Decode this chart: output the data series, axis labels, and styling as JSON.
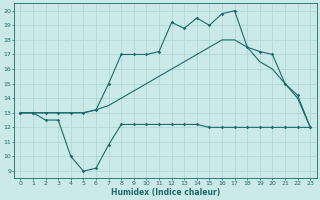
{
  "xlabel": "Humidex (Indice chaleur)",
  "xlim": [
    -0.5,
    23.5
  ],
  "ylim": [
    8.5,
    20.5
  ],
  "xticks": [
    0,
    1,
    2,
    3,
    4,
    5,
    6,
    7,
    8,
    9,
    10,
    11,
    12,
    13,
    14,
    15,
    16,
    17,
    18,
    19,
    20,
    21,
    22,
    23
  ],
  "yticks": [
    9,
    10,
    11,
    12,
    13,
    14,
    15,
    16,
    17,
    18,
    19,
    20
  ],
  "bg_color": "#cce9e9",
  "line_color": "#1a6b6b",
  "grid_color": "#b0d8d8",
  "line1_x": [
    0,
    1,
    2,
    3,
    4,
    5,
    6,
    7,
    8,
    9,
    10,
    11,
    12,
    13,
    14,
    15,
    16,
    17,
    18,
    19,
    20,
    21,
    22,
    23
  ],
  "line1_y": [
    13,
    13,
    12.5,
    12.5,
    10,
    9,
    9.2,
    10.8,
    12.2,
    12.2,
    12.2,
    12.2,
    12.2,
    12.2,
    12.2,
    12.0,
    12.0,
    12.0,
    12.0,
    12.0,
    12.0,
    12.0,
    12.0,
    12.0
  ],
  "line2_x": [
    0,
    1,
    2,
    3,
    4,
    5,
    6,
    7,
    8,
    9,
    10,
    11,
    12,
    13,
    14,
    15,
    16,
    17,
    18,
    19,
    20,
    21,
    22,
    23
  ],
  "line2_y": [
    13,
    13,
    13,
    13,
    13,
    13,
    13.2,
    13.5,
    14.0,
    14.5,
    15.0,
    15.5,
    16.0,
    16.5,
    17.0,
    17.5,
    18.0,
    18.0,
    17.5,
    16.5,
    16.0,
    15.0,
    14.0,
    12.0
  ],
  "line3_x": [
    0,
    1,
    2,
    3,
    4,
    5,
    6,
    7,
    8,
    9,
    10,
    11,
    12,
    13,
    14,
    15,
    16,
    17,
    18,
    19,
    20,
    21,
    22,
    23
  ],
  "line3_y": [
    13,
    13,
    13,
    13,
    13,
    13,
    13.2,
    15.0,
    17.0,
    17.0,
    17.0,
    17.2,
    19.2,
    18.8,
    19.5,
    19.0,
    19.8,
    20.0,
    17.5,
    17.2,
    17.0,
    15.0,
    14.2,
    12.0
  ]
}
